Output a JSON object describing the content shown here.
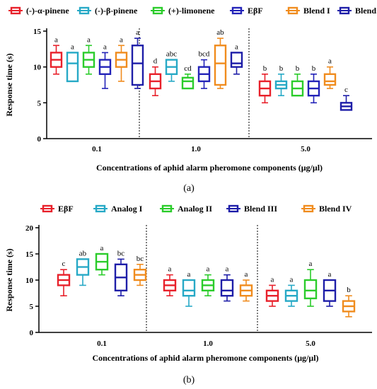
{
  "chart_data": [
    {
      "type": "boxplot",
      "panel_label": "(a)",
      "xlabel": "Concentrations of aphid alarm pheromone components (μg/μl)",
      "ylabel": "Response time (s)",
      "ylim": [
        0,
        15
      ],
      "yticks": [
        "0",
        "5",
        "10",
        "15"
      ],
      "categories": [
        "0.1",
        "1.0",
        "5.0"
      ],
      "series": [
        {
          "name": "(-)-α-pinene",
          "color": "#e8212b"
        },
        {
          "name": "(-)-β-pinene",
          "color": "#27a9c6"
        },
        {
          "name": "(+)-limonene",
          "color": "#2bcc2b"
        },
        {
          "name": "EβF",
          "color": "#2323b8"
        },
        {
          "name": "Blend I",
          "color": "#f08c1e"
        },
        {
          "name": "Blend II",
          "color": "#1e1ea8"
        }
      ],
      "groups": [
        {
          "category": "0.1",
          "boxes": [
            {
              "series": 0,
              "min": 9,
              "q1": 10,
              "median": 11,
              "q3": 12,
              "max": 13,
              "letter": "a"
            },
            {
              "series": 1,
              "min": 8,
              "q1": 8,
              "median": 10.5,
              "q3": 12,
              "max": 12,
              "letter": "a"
            },
            {
              "series": 2,
              "min": 9,
              "q1": 10,
              "median": 11,
              "q3": 12,
              "max": 13,
              "letter": "a"
            },
            {
              "series": 3,
              "min": 7,
              "q1": 9,
              "median": 10,
              "q3": 11,
              "max": 12,
              "letter": "a"
            },
            {
              "series": 4,
              "min": 8,
              "q1": 10,
              "median": 11,
              "q3": 12,
              "max": 13,
              "letter": "a"
            },
            {
              "series": 5,
              "min": 7,
              "q1": 7.5,
              "median": 10.5,
              "q3": 13,
              "max": 14,
              "letter": "a"
            }
          ]
        },
        {
          "category": "1.0",
          "boxes": [
            {
              "series": 0,
              "min": 6,
              "q1": 7,
              "median": 8,
              "q3": 9,
              "max": 10,
              "letter": "d"
            },
            {
              "series": 1,
              "min": 8,
              "q1": 9,
              "median": 10,
              "q3": 11,
              "max": 11,
              "letter": "abc"
            },
            {
              "series": 2,
              "min": 7,
              "q1": 7,
              "median": 8,
              "q3": 8.5,
              "max": 9,
              "letter": "cd"
            },
            {
              "series": 3,
              "min": 7,
              "q1": 8,
              "median": 9,
              "q3": 10,
              "max": 11,
              "letter": "bcd"
            },
            {
              "series": 4,
              "min": 7,
              "q1": 7.5,
              "median": 10.5,
              "q3": 13,
              "max": 14,
              "letter": "ab"
            },
            {
              "series": 5,
              "min": 9,
              "q1": 10,
              "median": 10.5,
              "q3": 12,
              "max": 12,
              "letter": "a"
            }
          ]
        },
        {
          "category": "5.0",
          "boxes": [
            {
              "series": 0,
              "min": 5,
              "q1": 6,
              "median": 7,
              "q3": 8,
              "max": 9,
              "letter": "b"
            },
            {
              "series": 1,
              "min": 6,
              "q1": 7,
              "median": 7.5,
              "q3": 8,
              "max": 9,
              "letter": "b"
            },
            {
              "series": 2,
              "min": 6,
              "q1": 6,
              "median": 7,
              "q3": 8,
              "max": 9,
              "letter": "b"
            },
            {
              "series": 3,
              "min": 5,
              "q1": 6,
              "median": 7,
              "q3": 8,
              "max": 9,
              "letter": "b"
            },
            {
              "series": 4,
              "min": 7,
              "q1": 7.5,
              "median": 8,
              "q3": 9,
              "max": 10,
              "letter": "a"
            },
            {
              "series": 5,
              "min": 4,
              "q1": 4,
              "median": 4.5,
              "q3": 5,
              "max": 6,
              "letter": "c"
            }
          ]
        }
      ]
    },
    {
      "type": "boxplot",
      "panel_label": "(b)",
      "xlabel": "Concentrations of aphid alarm pheromone components (μg/μl)",
      "ylabel": "Response time (s)",
      "ylim": [
        0,
        20
      ],
      "yticks": [
        "0",
        "5",
        "10",
        "15",
        "20"
      ],
      "categories": [
        "0.1",
        "1.0",
        "5.0"
      ],
      "series": [
        {
          "name": "EβF",
          "color": "#e8212b"
        },
        {
          "name": "Analog I",
          "color": "#27a9c6"
        },
        {
          "name": "Analog II",
          "color": "#2bcc2b"
        },
        {
          "name": "Blend III",
          "color": "#1e1ea8"
        },
        {
          "name": "Blend IV",
          "color": "#f08c1e"
        }
      ],
      "groups": [
        {
          "category": "0.1",
          "boxes": [
            {
              "series": 0,
              "min": 7,
              "q1": 9,
              "median": 10,
              "q3": 11,
              "max": 12,
              "letter": "c"
            },
            {
              "series": 1,
              "min": 9,
              "q1": 11,
              "median": 12.5,
              "q3": 14,
              "max": 14,
              "letter": "ab"
            },
            {
              "series": 2,
              "min": 11,
              "q1": 12,
              "median": 13.5,
              "q3": 15,
              "max": 15,
              "letter": "a"
            },
            {
              "series": 3,
              "min": 7,
              "q1": 8,
              "median": 10.5,
              "q3": 13,
              "max": 14,
              "letter": "bc"
            },
            {
              "series": 4,
              "min": 9,
              "q1": 10,
              "median": 11,
              "q3": 12,
              "max": 13,
              "letter": "bc"
            }
          ]
        },
        {
          "category": "1.0",
          "boxes": [
            {
              "series": 0,
              "min": 7,
              "q1": 8,
              "median": 9,
              "q3": 10,
              "max": 11,
              "letter": "a"
            },
            {
              "series": 1,
              "min": 5,
              "q1": 7,
              "median": 8,
              "q3": 10,
              "max": 10,
              "letter": "a"
            },
            {
              "series": 2,
              "min": 7,
              "q1": 8,
              "median": 9,
              "q3": 10,
              "max": 11,
              "letter": "a"
            },
            {
              "series": 3,
              "min": 6,
              "q1": 7,
              "median": 8,
              "q3": 10,
              "max": 11,
              "letter": "a"
            },
            {
              "series": 4,
              "min": 6,
              "q1": 7,
              "median": 8,
              "q3": 9,
              "max": 10,
              "letter": "a"
            }
          ]
        },
        {
          "category": "5.0",
          "boxes": [
            {
              "series": 0,
              "min": 5,
              "q1": 6,
              "median": 7,
              "q3": 8,
              "max": 9,
              "letter": "a"
            },
            {
              "series": 1,
              "min": 5,
              "q1": 6,
              "median": 7,
              "q3": 8,
              "max": 9,
              "letter": "a"
            },
            {
              "series": 2,
              "min": 5,
              "q1": 6.5,
              "median": 8,
              "q3": 10,
              "max": 12,
              "letter": "a"
            },
            {
              "series": 3,
              "min": 5,
              "q1": 6,
              "median": 8,
              "q3": 10,
              "max": 10,
              "letter": "a"
            },
            {
              "series": 4,
              "min": 3,
              "q1": 4,
              "median": 5,
              "q3": 6,
              "max": 7,
              "letter": "b"
            }
          ]
        }
      ]
    }
  ]
}
